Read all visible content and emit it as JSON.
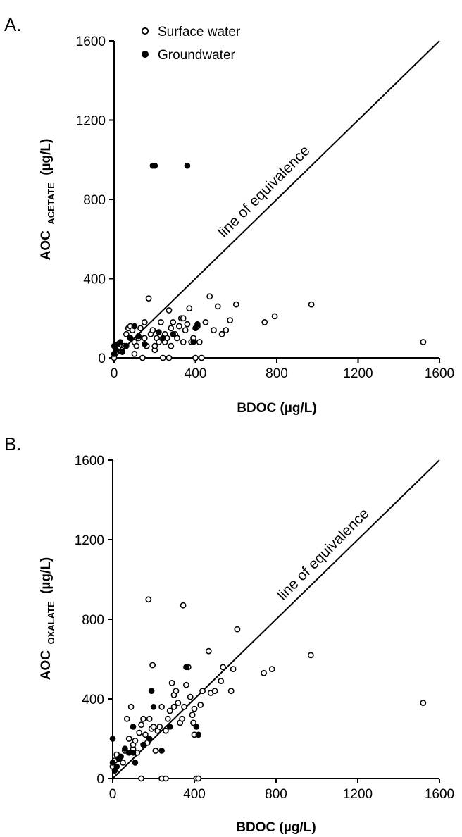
{
  "chart_data": [
    {
      "type": "scatter",
      "panel_label": "A.",
      "xlabel": "BDOC (µg/L)",
      "ylabel_main": "AOC",
      "ylabel_sub": "ACETATE",
      "ylabel_unit": "(µg/L)",
      "xlim": [
        0,
        1600
      ],
      "ylim": [
        0,
        1600
      ],
      "x_ticks": [
        0,
        400,
        800,
        1200,
        1600
      ],
      "y_ticks": [
        0,
        400,
        800,
        1200,
        1600
      ],
      "legend": {
        "placement": "top-left",
        "entries": [
          {
            "label": "Surface water",
            "marker": "open-circle"
          },
          {
            "label": "Groundwater",
            "marker": "filled-circle"
          }
        ]
      },
      "annotation": "line of equivalence",
      "reference_line": {
        "x": [
          0,
          1600
        ],
        "y": [
          0,
          1600
        ]
      },
      "series": [
        {
          "name": "Surface water",
          "marker": "open",
          "points": [
            [
              0,
              0
            ],
            [
              10,
              30
            ],
            [
              20,
              50
            ],
            [
              40,
              40
            ],
            [
              50,
              60
            ],
            [
              60,
              120
            ],
            [
              70,
              150
            ],
            [
              80,
              160
            ],
            [
              90,
              140
            ],
            [
              100,
              80
            ],
            [
              100,
              20
            ],
            [
              110,
              60
            ],
            [
              120,
              100
            ],
            [
              130,
              150
            ],
            [
              140,
              0
            ],
            [
              150,
              180
            ],
            [
              150,
              100
            ],
            [
              160,
              60
            ],
            [
              170,
              300
            ],
            [
              180,
              120
            ],
            [
              190,
              140
            ],
            [
              200,
              40
            ],
            [
              200,
              60
            ],
            [
              210,
              100
            ],
            [
              220,
              80
            ],
            [
              230,
              180
            ],
            [
              240,
              0
            ],
            [
              250,
              80
            ],
            [
              250,
              120
            ],
            [
              260,
              100
            ],
            [
              270,
              240
            ],
            [
              270,
              0
            ],
            [
              280,
              150
            ],
            [
              280,
              60
            ],
            [
              290,
              180
            ],
            [
              300,
              120
            ],
            [
              310,
              100
            ],
            [
              320,
              160
            ],
            [
              330,
              200
            ],
            [
              340,
              200
            ],
            [
              340,
              80
            ],
            [
              350,
              140
            ],
            [
              360,
              170
            ],
            [
              370,
              250
            ],
            [
              380,
              80
            ],
            [
              390,
              100
            ],
            [
              400,
              0
            ],
            [
              410,
              160
            ],
            [
              420,
              80
            ],
            [
              430,
              0
            ],
            [
              450,
              180
            ],
            [
              470,
              310
            ],
            [
              490,
              140
            ],
            [
              510,
              260
            ],
            [
              530,
              120
            ],
            [
              550,
              140
            ],
            [
              570,
              190
            ],
            [
              600,
              270
            ],
            [
              740,
              180
            ],
            [
              790,
              210
            ],
            [
              970,
              270
            ],
            [
              1520,
              80
            ]
          ]
        },
        {
          "name": "Groundwater",
          "marker": "filled",
          "points": [
            [
              0,
              20
            ],
            [
              0,
              60
            ],
            [
              10,
              40
            ],
            [
              20,
              70
            ],
            [
              30,
              80
            ],
            [
              40,
              30
            ],
            [
              60,
              60
            ],
            [
              80,
              100
            ],
            [
              100,
              160
            ],
            [
              120,
              110
            ],
            [
              150,
              70
            ],
            [
              190,
              970
            ],
            [
              200,
              970
            ],
            [
              220,
              130
            ],
            [
              240,
              100
            ],
            [
              290,
              120
            ],
            [
              360,
              970
            ],
            [
              390,
              80
            ],
            [
              400,
              150
            ],
            [
              410,
              170
            ]
          ]
        }
      ]
    },
    {
      "type": "scatter",
      "panel_label": "B.",
      "xlabel": "BDOC (µg/L)",
      "ylabel_main": "AOC",
      "ylabel_sub": "OXALATE",
      "ylabel_unit": "(µg/L)",
      "xlim": [
        0,
        1600
      ],
      "ylim": [
        0,
        1600
      ],
      "x_ticks": [
        0,
        400,
        800,
        1200,
        1600
      ],
      "y_ticks": [
        0,
        400,
        800,
        1200,
        1600
      ],
      "annotation": "line of equivalence",
      "reference_line": {
        "x": [
          0,
          1600
        ],
        "y": [
          0,
          1600
        ]
      },
      "series": [
        {
          "name": "Surface water",
          "marker": "open",
          "points": [
            [
              0,
              60
            ],
            [
              10,
              90
            ],
            [
              20,
              120
            ],
            [
              30,
              100
            ],
            [
              50,
              80
            ],
            [
              60,
              140
            ],
            [
              70,
              300
            ],
            [
              80,
              200
            ],
            [
              90,
              360
            ],
            [
              100,
              150
            ],
            [
              100,
              170
            ],
            [
              110,
              190
            ],
            [
              120,
              130
            ],
            [
              130,
              230
            ],
            [
              140,
              270
            ],
            [
              140,
              0
            ],
            [
              150,
              300
            ],
            [
              160,
              220
            ],
            [
              170,
              180
            ],
            [
              175,
              900
            ],
            [
              180,
              300
            ],
            [
              190,
              250
            ],
            [
              195,
              570
            ],
            [
              200,
              260
            ],
            [
              210,
              140
            ],
            [
              220,
              240
            ],
            [
              230,
              260
            ],
            [
              240,
              360
            ],
            [
              240,
              0
            ],
            [
              260,
              0
            ],
            [
              260,
              240
            ],
            [
              270,
              300
            ],
            [
              280,
              340
            ],
            [
              290,
              480
            ],
            [
              300,
              420
            ],
            [
              300,
              360
            ],
            [
              310,
              440
            ],
            [
              320,
              380
            ],
            [
              330,
              280
            ],
            [
              340,
              300
            ],
            [
              345,
              870
            ],
            [
              350,
              360
            ],
            [
              360,
              470
            ],
            [
              370,
              560
            ],
            [
              380,
              410
            ],
            [
              390,
              320
            ],
            [
              395,
              280
            ],
            [
              400,
              220
            ],
            [
              400,
              350
            ],
            [
              410,
              0
            ],
            [
              420,
              0
            ],
            [
              430,
              370
            ],
            [
              440,
              440
            ],
            [
              470,
              640
            ],
            [
              480,
              430
            ],
            [
              500,
              440
            ],
            [
              530,
              490
            ],
            [
              540,
              560
            ],
            [
              580,
              440
            ],
            [
              590,
              550
            ],
            [
              610,
              750
            ],
            [
              740,
              530
            ],
            [
              780,
              550
            ],
            [
              970,
              620
            ],
            [
              1520,
              380
            ]
          ]
        },
        {
          "name": "Groundwater",
          "marker": "filled",
          "points": [
            [
              0,
              200
            ],
            [
              0,
              80
            ],
            [
              10,
              40
            ],
            [
              20,
              60
            ],
            [
              30,
              100
            ],
            [
              40,
              110
            ],
            [
              60,
              150
            ],
            [
              80,
              130
            ],
            [
              100,
              130
            ],
            [
              100,
              260
            ],
            [
              110,
              80
            ],
            [
              150,
              170
            ],
            [
              180,
              200
            ],
            [
              190,
              440
            ],
            [
              200,
              360
            ],
            [
              240,
              140
            ],
            [
              280,
              260
            ],
            [
              360,
              560
            ],
            [
              410,
              260
            ],
            [
              420,
              220
            ]
          ]
        }
      ]
    }
  ]
}
